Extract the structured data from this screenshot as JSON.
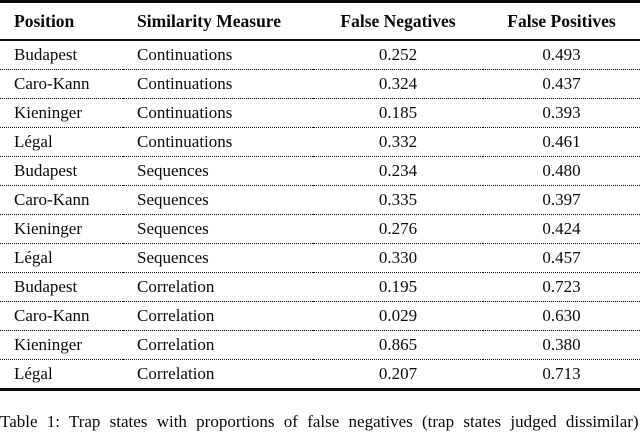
{
  "table": {
    "columns": [
      "Position",
      "Similarity Measure",
      "False Negatives",
      "False Positives"
    ],
    "rows": [
      [
        "Budapest",
        "Continuations",
        "0.252",
        "0.493"
      ],
      [
        "Caro-Kann",
        "Continuations",
        "0.324",
        "0.437"
      ],
      [
        "Kieninger",
        "Continuations",
        "0.185",
        "0.393"
      ],
      [
        "Légal",
        "Continuations",
        "0.332",
        "0.461"
      ],
      [
        "Budapest",
        "Sequences",
        "0.234",
        "0.480"
      ],
      [
        "Caro-Kann",
        "Sequences",
        "0.335",
        "0.397"
      ],
      [
        "Kieninger",
        "Sequences",
        "0.276",
        "0.424"
      ],
      [
        "Légal",
        "Sequences",
        "0.330",
        "0.457"
      ],
      [
        "Budapest",
        "Correlation",
        "0.195",
        "0.723"
      ],
      [
        "Caro-Kann",
        "Correlation",
        "0.029",
        "0.630"
      ],
      [
        "Kieninger",
        "Correlation",
        "0.865",
        "0.380"
      ],
      [
        "Légal",
        "Correlation",
        "0.207",
        "0.713"
      ]
    ]
  },
  "caption": "Table 1: Trap states with proportions of false negatives (trap states judged dissimilar)",
  "colors": {
    "text": "#0a0a0a",
    "background": "#ffffff"
  },
  "chart_data": {
    "type": "table",
    "title": "Table 1",
    "columns": [
      "Position",
      "Similarity Measure",
      "False Negatives",
      "False Positives"
    ],
    "rows": [
      [
        "Budapest",
        "Continuations",
        0.252,
        0.493
      ],
      [
        "Caro-Kann",
        "Continuations",
        0.324,
        0.437
      ],
      [
        "Kieninger",
        "Continuations",
        0.185,
        0.393
      ],
      [
        "Légal",
        "Continuations",
        0.332,
        0.461
      ],
      [
        "Budapest",
        "Sequences",
        0.234,
        0.48
      ],
      [
        "Caro-Kann",
        "Sequences",
        0.335,
        0.397
      ],
      [
        "Kieninger",
        "Sequences",
        0.276,
        0.424
      ],
      [
        "Légal",
        "Sequences",
        0.33,
        0.457
      ],
      [
        "Budapest",
        "Correlation",
        0.195,
        0.723
      ],
      [
        "Caro-Kann",
        "Correlation",
        0.029,
        0.63
      ],
      [
        "Kieninger",
        "Correlation",
        0.865,
        0.38
      ],
      [
        "Légal",
        "Correlation",
        0.207,
        0.713
      ]
    ]
  }
}
